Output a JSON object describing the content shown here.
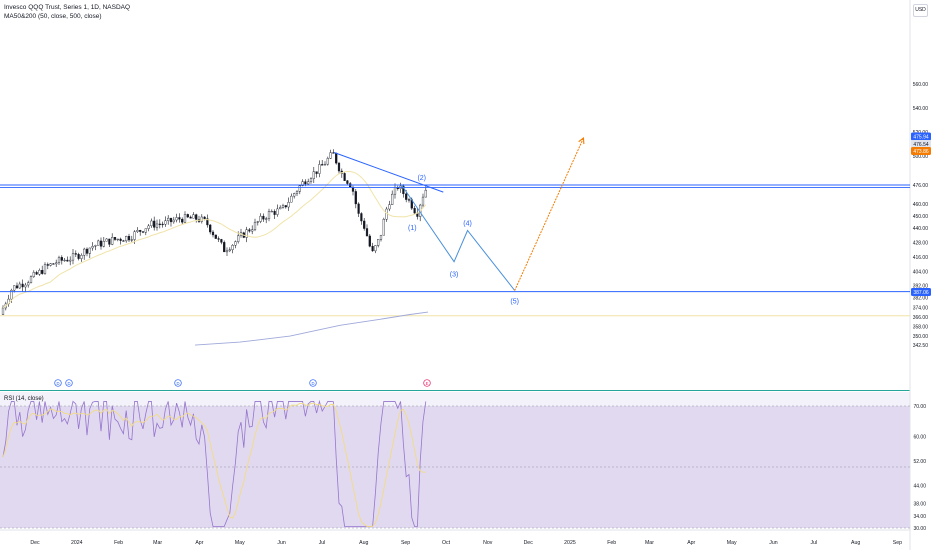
{
  "header": {
    "title": "Invesco QQQ Trust, Series 1, 1D, NASDAQ",
    "ma_label": "MA50&200 (50, close, 500, close)",
    "currency": "USD",
    "rsi_label": "RSI (14, close)"
  },
  "colors": {
    "up": "#131722",
    "down": "#131722",
    "ma50": "#f0e3a8",
    "ma200": "#9fa8da",
    "trend": "#2962ff",
    "projection_orange": "#f57c00",
    "rsi_line": "#9575cd",
    "rsi_ma": "#f2dc82",
    "rsi_band": "#d1c4e9",
    "overbought_fill": "#bdbdbd"
  },
  "price_axis": {
    "ticks": [
      "560.00",
      "540.00",
      "520.00",
      "500.00",
      "476.00",
      "460.00",
      "450.00",
      "440.00",
      "428.00",
      "416.00",
      "404.00",
      "392.00",
      "382.00",
      "374.00",
      "366.00",
      "358.00",
      "350.00",
      "342.50"
    ],
    "badges": [
      {
        "text": "475.94",
        "color": "#2962ff",
        "text_color": "#ffffff"
      },
      {
        "text": "476.54",
        "color": "#e0e3eb",
        "text_color": "#131722"
      },
      {
        "text": "473.86",
        "color": "#f57c00",
        "text_color": "#ffffff"
      },
      {
        "text": "387.06",
        "color": "#2962ff",
        "text_color": "#ffffff"
      }
    ]
  },
  "rsi_axis": {
    "ticks": [
      "70.00",
      "60.00",
      "52.00",
      "44.00",
      "38.00",
      "34.00",
      "30.00"
    ]
  },
  "time_axis": {
    "ticks": [
      "Dec",
      "2024",
      "Feb",
      "Mar",
      "Apr",
      "May",
      "Jun",
      "Jul",
      "Aug",
      "Sep",
      "Oct",
      "Nov",
      "Dec",
      "2025",
      "Feb",
      "Mar",
      "Apr",
      "May",
      "Jun",
      "Jul",
      "Aug",
      "Sep"
    ]
  },
  "markers": [
    {
      "text": "D"
    },
    {
      "text": "D"
    },
    {
      "text": "D"
    },
    {
      "text": "D"
    },
    {
      "text": "E"
    }
  ],
  "chart_data": {
    "type": "candlestick",
    "title": "Invesco QQQ Trust, Series 1, 1D, NASDAQ",
    "series": [
      {
        "name": "MA50&200 (50, close, 500, close)"
      }
    ],
    "horizontal_levels": [
      475.94,
      473.86,
      387.06
    ],
    "elliott_wave_labels": [
      "(1)",
      "(2)",
      "(3)",
      "(4)",
      "(5)"
    ],
    "wave_path": [
      {
        "date": "2024-08-29",
        "price": 476
      },
      {
        "date": "2024-10-07",
        "price": 412
      },
      {
        "date": "2024-10-17",
        "price": 438
      },
      {
        "date": "2024-11-21",
        "price": 388
      }
    ],
    "projection": [
      {
        "date": "2024-11-21",
        "price": 388
      },
      {
        "date": "2025-01-11",
        "price": 515
      }
    ],
    "trendline": [
      {
        "date": "2024-07-10",
        "price": 503
      },
      {
        "date": "2024-09-29",
        "price": 470
      }
    ],
    "wave_points": [
      {
        "label": "(1)",
        "date": "2024-09-06",
        "price": 450
      },
      {
        "label": "(2)",
        "date": "2024-09-13",
        "price": 476
      },
      {
        "label": "(3)",
        "date": "2024-10-07",
        "price": 412
      },
      {
        "label": "(4)",
        "date": "2024-10-17",
        "price": 438
      },
      {
        "label": "(5)",
        "date": "2024-11-21",
        "price": 388
      }
    ],
    "ylim": [
      342.5,
      566
    ],
    "rsi": {
      "name": "RSI (14, close)",
      "ylim": [
        30,
        72
      ],
      "overbought": 70,
      "middle": 50,
      "oversold": 30
    }
  }
}
